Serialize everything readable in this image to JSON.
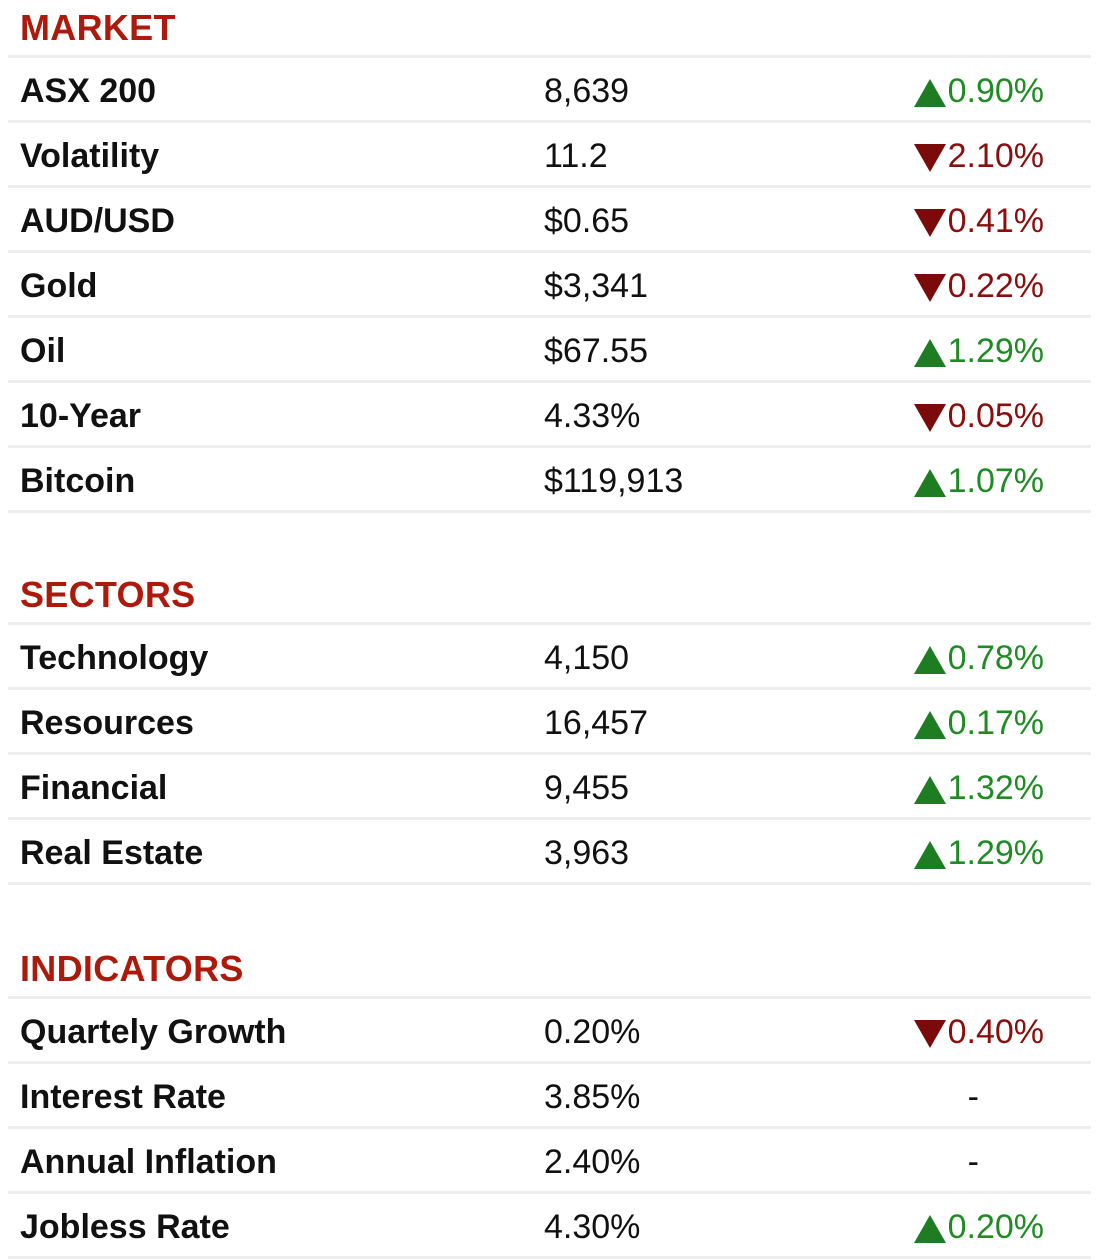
{
  "colors": {
    "heading": "#ad1a0c",
    "up": "#1e8c22",
    "down": "#8b0e0e",
    "divider": "#eeeeee"
  },
  "sections": [
    {
      "title": "MARKET",
      "rows": [
        {
          "label": "ASX 200",
          "value": "8,639",
          "direction": "up",
          "change": "0.90%"
        },
        {
          "label": "Volatility",
          "value": "11.2",
          "direction": "down",
          "change": "2.10%"
        },
        {
          "label": "AUD/USD",
          "value": "$0.65",
          "direction": "down",
          "change": "0.41%"
        },
        {
          "label": "Gold",
          "value": "$3,341",
          "direction": "down",
          "change": "0.22%"
        },
        {
          "label": "Oil",
          "value": "$67.55",
          "direction": "up",
          "change": "1.29%"
        },
        {
          "label": "10-Year",
          "value": "4.33%",
          "direction": "down",
          "change": "0.05%"
        },
        {
          "label": "Bitcoin",
          "value": "$119,913",
          "direction": "up",
          "change": "1.07%"
        }
      ]
    },
    {
      "title": "SECTORS",
      "rows": [
        {
          "label": "Technology",
          "value": "4,150",
          "direction": "up",
          "change": "0.78%"
        },
        {
          "label": "Resources",
          "value": "16,457",
          "direction": "up",
          "change": "0.17%"
        },
        {
          "label": "Financial",
          "value": "9,455",
          "direction": "up",
          "change": "1.32%"
        },
        {
          "label": "Real Estate",
          "value": "3,963",
          "direction": "up",
          "change": "1.29%"
        }
      ]
    },
    {
      "title": "INDICATORS",
      "rows": [
        {
          "label": "Quartely Growth",
          "value": "0.20%",
          "direction": "down",
          "change": "0.40%"
        },
        {
          "label": "Interest Rate",
          "value": "3.85%",
          "direction": "none",
          "change": "-"
        },
        {
          "label": "Annual Inflation",
          "value": "2.40%",
          "direction": "none",
          "change": "-"
        },
        {
          "label": "Jobless Rate",
          "value": "4.30%",
          "direction": "up",
          "change": "0.20%"
        }
      ]
    }
  ]
}
